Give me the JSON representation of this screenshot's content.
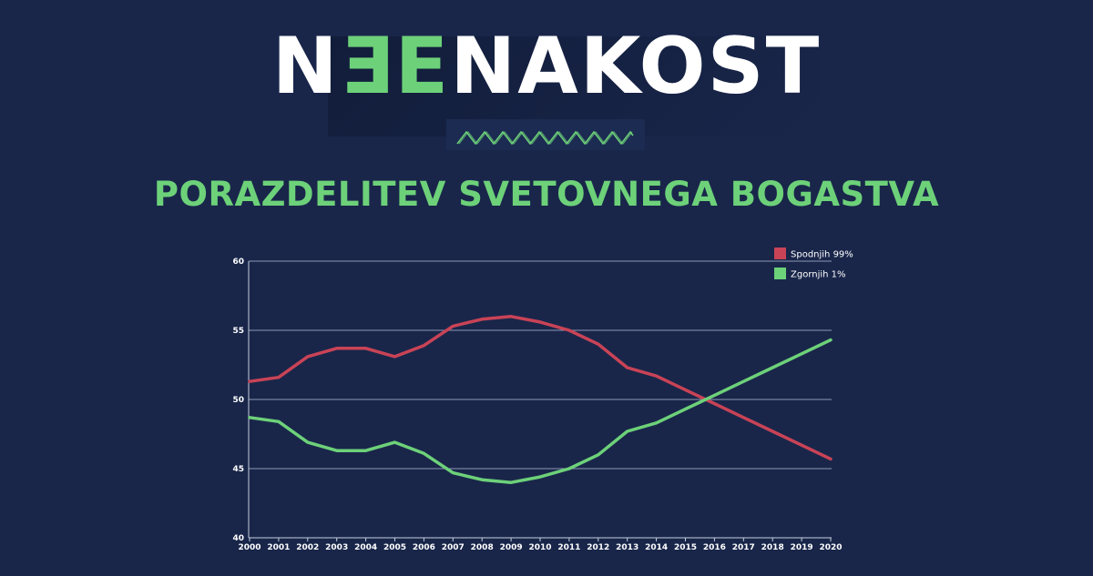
{
  "header": {
    "logo_pre": "NE",
    "logo_post": "NAKOST",
    "title": "PORAZDELITEV SVETOVNEGA BOGASTVA"
  },
  "colors": {
    "background": "#19264a",
    "accent": "#6dd179",
    "red": "#c94356",
    "green": "#6dd179"
  },
  "chart_data": {
    "type": "line",
    "x": [
      "2000",
      "2001",
      "2002",
      "2003",
      "2004",
      "2005",
      "2006",
      "2007",
      "2008",
      "2009",
      "2010",
      "2011",
      "2012",
      "2013",
      "2014",
      "2015",
      "2016",
      "2017",
      "2018",
      "2019",
      "2020"
    ],
    "ylim": [
      40,
      60
    ],
    "yticks": [
      40,
      45,
      50,
      55,
      60
    ],
    "grid": true,
    "legend_position": "top-right",
    "series": [
      {
        "name": "Spodnjih 99%",
        "color": "#c94356",
        "values": [
          51.3,
          51.6,
          53.1,
          53.7,
          53.7,
          53.1,
          53.9,
          55.3,
          55.8,
          56.0,
          55.6,
          55.0,
          54.0,
          52.3,
          51.7,
          50.7,
          49.7,
          48.7,
          47.7,
          46.7,
          45.7
        ]
      },
      {
        "name": "Zgornjih 1%",
        "color": "#6dd179",
        "values": [
          48.7,
          48.4,
          46.9,
          46.3,
          46.3,
          46.9,
          46.1,
          44.7,
          44.2,
          44.0,
          44.4,
          45.0,
          46.0,
          47.7,
          48.3,
          49.3,
          50.3,
          51.3,
          52.3,
          53.3,
          54.3
        ]
      }
    ]
  }
}
